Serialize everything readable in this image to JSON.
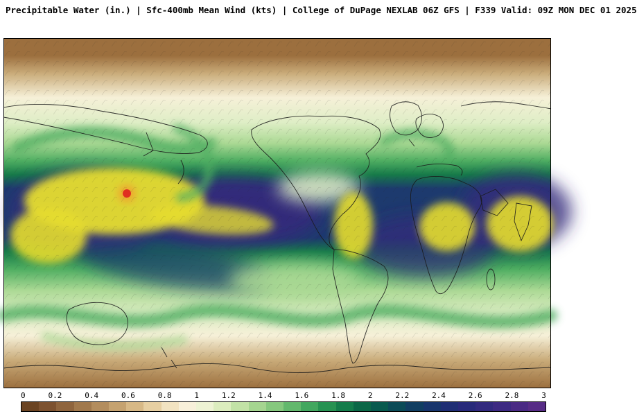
{
  "header": {
    "title": "Precipitable Water (in.) | Sfc-400mb Mean Wind (kts) | College of DuPage NEXLAB 06Z GFS | F339 Valid: 09Z MON DEC 01 2025",
    "parameter": "Precipitable Water (in.)",
    "overlay": "Sfc-400mb Mean Wind (kts)",
    "source": "College of DuPage NEXLAB 06Z GFS",
    "forecast_hour": "F339",
    "valid_time": "09Z MON DEC 01 2025"
  },
  "map": {
    "description": "Global equirectangular precipitable water fill with mean wind barbs",
    "colors": {
      "polar_dry": "#9c6f3e",
      "subtropic_tan": "#c9ab79",
      "cream": "#f6f0d8",
      "pale_green": "#dfeec6",
      "light_green": "#abd994",
      "green": "#4fae62",
      "dark_green": "#167a49",
      "teal": "#0b5a50",
      "navy": "#1d3a6e",
      "purple": "#352a7c",
      "yellow": "#e6dd2e",
      "orange": "#f0a22e",
      "red": "#e03020",
      "outline": "#1a1a1a"
    }
  },
  "colorbar": {
    "unit": "in.",
    "ticks": [
      "0",
      "0.2",
      "0.4",
      "0.6",
      "0.8",
      "1",
      "1.2",
      "1.4",
      "1.6",
      "1.8",
      "2",
      "2.2",
      "2.4",
      "2.6",
      "2.8",
      "3"
    ],
    "segments": [
      {
        "range": "0.0-0.1",
        "color": "#6b4423"
      },
      {
        "range": "0.1-0.2",
        "color": "#7d5230"
      },
      {
        "range": "0.2-0.3",
        "color": "#8f653e"
      },
      {
        "range": "0.3-0.4",
        "color": "#a1794d"
      },
      {
        "range": "0.4-0.5",
        "color": "#b38d5e"
      },
      {
        "range": "0.5-0.6",
        "color": "#c5a270"
      },
      {
        "range": "0.6-0.7",
        "color": "#d7b886"
      },
      {
        "range": "0.7-0.8",
        "color": "#e7cfa2"
      },
      {
        "range": "0.8-0.9",
        "color": "#f2e3c1"
      },
      {
        "range": "0.9-1.0",
        "color": "#f8f0da"
      },
      {
        "range": "1.0-1.1",
        "color": "#eef3d4"
      },
      {
        "range": "1.1-1.2",
        "color": "#dcedbe"
      },
      {
        "range": "1.2-1.3",
        "color": "#c2e2a6"
      },
      {
        "range": "1.3-1.4",
        "color": "#a5d590"
      },
      {
        "range": "1.4-1.5",
        "color": "#86c87e"
      },
      {
        "range": "1.5-1.6",
        "color": "#63b86d"
      },
      {
        "range": "1.6-1.7",
        "color": "#42a75f"
      },
      {
        "range": "1.7-1.8",
        "color": "#279252"
      },
      {
        "range": "1.8-1.9",
        "color": "#147c4b"
      },
      {
        "range": "1.9-2.0",
        "color": "#0b6747"
      },
      {
        "range": "2.0-2.1",
        "color": "#085a4e"
      },
      {
        "range": "2.1-2.2",
        "color": "#0b4b57"
      },
      {
        "range": "2.2-2.3",
        "color": "#113e61"
      },
      {
        "range": "2.3-2.4",
        "color": "#18356c"
      },
      {
        "range": "2.4-2.5",
        "color": "#1f2e74"
      },
      {
        "range": "2.5-2.6",
        "color": "#28297a"
      },
      {
        "range": "2.6-2.7",
        "color": "#32297e"
      },
      {
        "range": "2.7-2.8",
        "color": "#3d2982"
      },
      {
        "range": "2.8-2.9",
        "color": "#4a2a84"
      },
      {
        "range": "2.9-3.0",
        "color": "#572c86"
      }
    ]
  }
}
